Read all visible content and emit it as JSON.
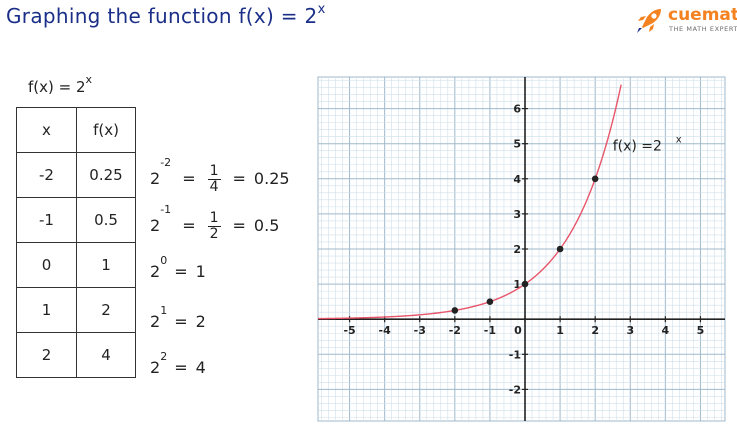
{
  "header": {
    "title": "Graphing the function f(x) = 2",
    "title_exp": "x"
  },
  "logo": {
    "brand": "cuemath",
    "tagline": "THE MATH EXPERT",
    "icon": "rocket-icon",
    "brand_color": "#f58220"
  },
  "left": {
    "equation_base": "f(x)  =  2",
    "equation_exp": "x"
  },
  "table": {
    "headers": [
      "x",
      "f(x)"
    ],
    "rows": [
      [
        "-2",
        "0.25"
      ],
      [
        "-1",
        "0.5"
      ],
      [
        "0",
        "1"
      ],
      [
        "1",
        "2"
      ],
      [
        "2",
        "4"
      ]
    ]
  },
  "calc": [
    {
      "base": "2",
      "exp": "-2",
      "num": "1",
      "den": "4",
      "result": "0.25"
    },
    {
      "base": "2",
      "exp": "-1",
      "num": "1",
      "den": "2",
      "result": "0.5"
    },
    {
      "base": "2",
      "exp": "0",
      "result": "1"
    },
    {
      "base": "2",
      "exp": "1",
      "result": "2"
    },
    {
      "base": "2",
      "exp": "2",
      "result": "4"
    }
  ],
  "chart_data": {
    "type": "line",
    "title": "",
    "xlabel": "",
    "ylabel": "",
    "xlim": [
      -5.9,
      5.7
    ],
    "ylim": [
      -2.9,
      6.9
    ],
    "xticks": [
      "-5",
      "-4",
      "-3",
      "-2",
      "-1",
      "0",
      "1",
      "2",
      "3",
      "4",
      "5"
    ],
    "yticks": [
      "-2",
      "-1",
      "1",
      "2",
      "3",
      "4",
      "5",
      "6"
    ],
    "grid": true,
    "minor_grid_step": 0.2,
    "curve": {
      "function": "2^x",
      "x_range": [
        -5.9,
        2.74
      ],
      "color": "#e8556a"
    },
    "points": [
      {
        "x": -2,
        "y": 0.25
      },
      {
        "x": -1,
        "y": 0.5
      },
      {
        "x": 0,
        "y": 1
      },
      {
        "x": 1,
        "y": 2
      },
      {
        "x": 2,
        "y": 4
      }
    ],
    "annotation": {
      "text": "f(x) =2",
      "exp": "x",
      "at": [
        2.5,
        4.8
      ]
    },
    "colors": {
      "grid_minor": "#cfdfea",
      "grid_major": "#9fb9cc",
      "axis": "#222222",
      "curve": "#e8556a",
      "point": "#222222"
    }
  }
}
